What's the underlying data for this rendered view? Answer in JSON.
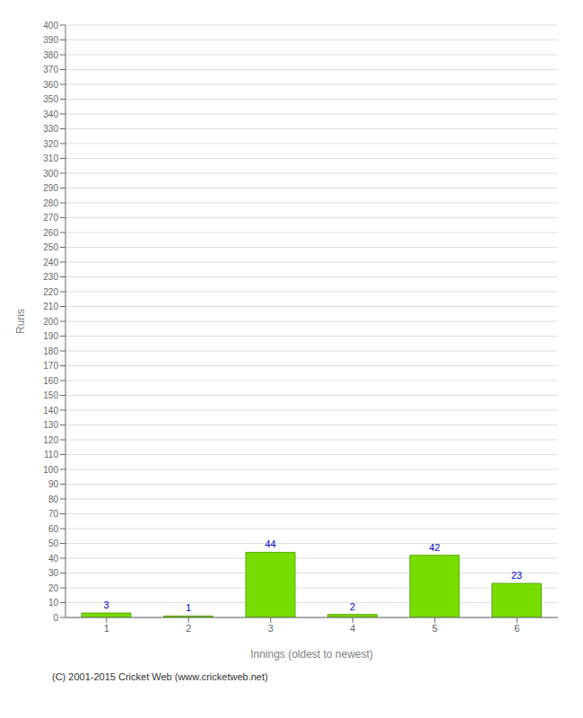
{
  "chart_data": {
    "type": "bar",
    "categories": [
      "1",
      "2",
      "3",
      "4",
      "5",
      "6"
    ],
    "values": [
      3,
      1,
      44,
      2,
      42,
      23
    ],
    "color": "#77dd00",
    "xlabel": "Innings (oldest to newest)",
    "ylabel": "Runs",
    "ylim": [
      0,
      400
    ],
    "yticks": [
      0,
      10,
      20,
      30,
      40,
      50,
      60,
      70,
      80,
      90,
      100,
      110,
      120,
      130,
      140,
      150,
      160,
      170,
      180,
      190,
      200,
      210,
      220,
      230,
      240,
      250,
      260,
      270,
      280,
      290,
      300,
      310,
      320,
      330,
      340,
      350,
      360,
      370,
      380,
      390,
      400
    ],
    "grid": true,
    "data_labels": true,
    "annotations": [
      "(C) 2001-2015 Cricket Web (www.cricketweb.net)"
    ]
  }
}
